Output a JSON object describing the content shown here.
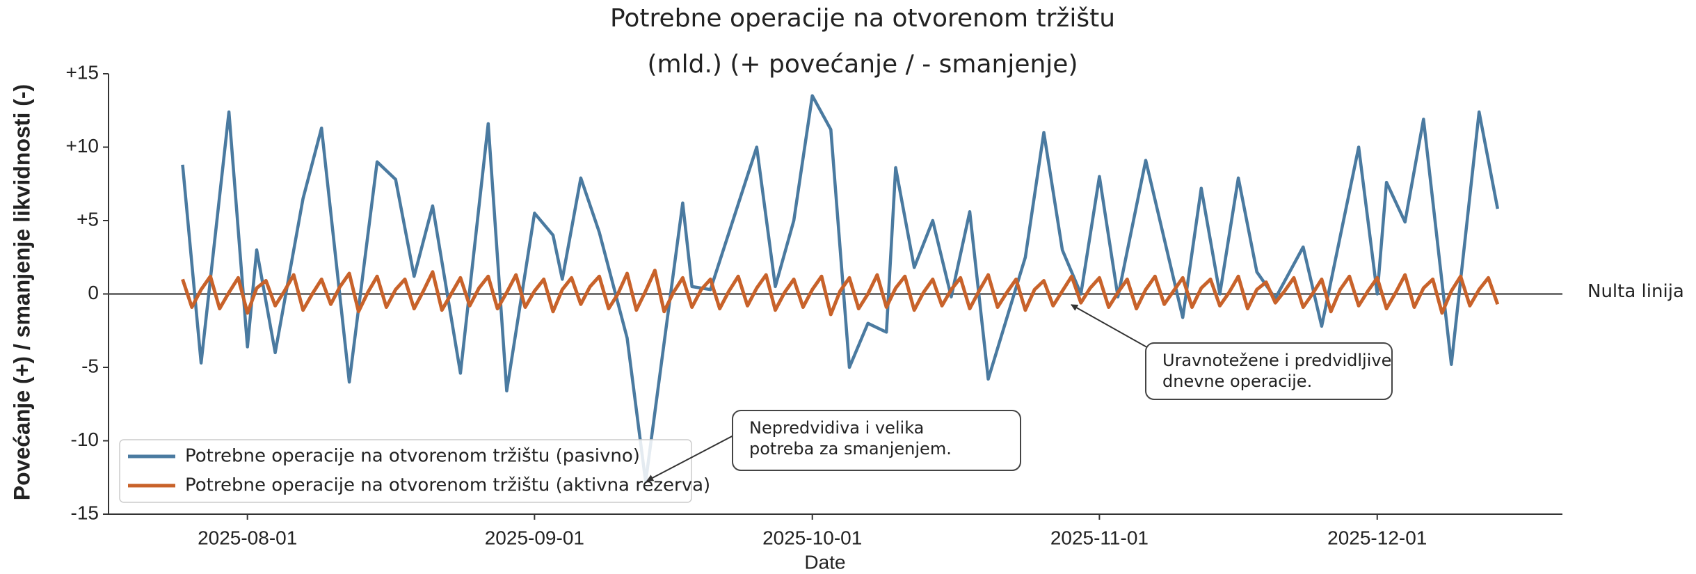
{
  "chart_data": {
    "type": "line",
    "title": "Potrebne operacije na otvorenom tržištu",
    "subtitle": "(mld.) (+ povećanje / - smanjenje)",
    "ylabel": "Povećanje (+) / smanjenje likvidnosti  (-)",
    "xlabel": "Date",
    "xlim": [
      "2025-07-17",
      "2025-12-21"
    ],
    "xticks": [
      "2025-08-01",
      "2025-09-01",
      "2025-10-01",
      "2025-11-01",
      "2025-12-01"
    ],
    "ylim": [
      -15,
      15
    ],
    "yticks": [
      {
        "value": 15,
        "label": "+15"
      },
      {
        "value": 10,
        "label": "+10"
      },
      {
        "value": 5,
        "label": "+5"
      },
      0,
      -5,
      -10,
      -15
    ],
    "reference_line": {
      "value": 0,
      "label": "Nulta linija"
    },
    "legend": "lower left",
    "series": [
      {
        "name": "Potrebne operacije na otvorenom tržištu (pasivno)",
        "color": "#4a7aa0",
        "x": [
          "2025-07-25",
          "2025-07-27",
          "2025-07-30",
          "2025-08-01",
          "2025-08-02",
          "2025-08-04",
          "2025-08-07",
          "2025-08-09",
          "2025-08-12",
          "2025-08-15",
          "2025-08-17",
          "2025-08-19",
          "2025-08-21",
          "2025-08-24",
          "2025-08-27",
          "2025-08-29",
          "2025-09-01",
          "2025-09-03",
          "2025-09-04",
          "2025-09-06",
          "2025-09-08",
          "2025-09-11",
          "2025-09-13",
          "2025-09-17",
          "2025-09-18",
          "2025-09-20",
          "2025-09-25",
          "2025-09-27",
          "2025-09-29",
          "2025-10-01",
          "2025-10-03",
          "2025-10-05",
          "2025-10-07",
          "2025-10-09",
          "2025-10-10",
          "2025-10-12",
          "2025-10-14",
          "2025-10-16",
          "2025-10-18",
          "2025-10-20",
          "2025-10-24",
          "2025-10-26",
          "2025-10-28",
          "2025-10-30",
          "2025-11-01",
          "2025-11-03",
          "2025-11-06",
          "2025-11-10",
          "2025-11-12",
          "2025-11-14",
          "2025-11-16",
          "2025-11-18",
          "2025-11-20",
          "2025-11-23",
          "2025-11-25",
          "2025-11-29",
          "2025-12-01",
          "2025-12-02",
          "2025-12-04",
          "2025-12-06",
          "2025-12-09",
          "2025-12-12",
          "2025-12-14"
        ],
        "values": [
          8.8,
          -4.7,
          12.4,
          -3.6,
          3.0,
          -4.0,
          6.5,
          11.3,
          -6.0,
          9.0,
          7.8,
          1.2,
          6.0,
          -5.4,
          11.6,
          -6.6,
          5.5,
          4.0,
          1.0,
          7.9,
          4.2,
          -3.0,
          -12.8,
          6.2,
          0.5,
          0.3,
          10.0,
          0.5,
          5.0,
          13.5,
          11.2,
          -5.0,
          -2.0,
          -2.6,
          8.6,
          1.8,
          5.0,
          -0.2,
          5.6,
          -5.8,
          2.5,
          11.0,
          3.0,
          0.0,
          8.0,
          -0.2,
          9.1,
          -1.6,
          7.2,
          0.0,
          7.9,
          1.5,
          -0.3,
          3.2,
          -2.2,
          10.0,
          0.0,
          7.6,
          4.9,
          11.9,
          -4.8,
          12.4,
          5.8
        ]
      },
      {
        "name": "Potrebne operacije na otvorenom tržištu (aktivna rezerva)",
        "color": "#c8622a",
        "x": [
          "2025-07-25",
          "2025-07-26",
          "2025-07-27",
          "2025-07-28",
          "2025-07-29",
          "2025-07-30",
          "2025-07-31",
          "2025-08-01",
          "2025-08-02",
          "2025-08-03",
          "2025-08-04",
          "2025-08-05",
          "2025-08-06",
          "2025-08-07",
          "2025-08-08",
          "2025-08-09",
          "2025-08-10",
          "2025-08-11",
          "2025-08-12",
          "2025-08-13",
          "2025-08-14",
          "2025-08-15",
          "2025-08-16",
          "2025-08-17",
          "2025-08-18",
          "2025-08-19",
          "2025-08-20",
          "2025-08-21",
          "2025-08-22",
          "2025-08-23",
          "2025-08-24",
          "2025-08-25",
          "2025-08-26",
          "2025-08-27",
          "2025-08-28",
          "2025-08-29",
          "2025-08-30",
          "2025-08-31",
          "2025-09-01",
          "2025-09-02",
          "2025-09-03",
          "2025-09-04",
          "2025-09-05",
          "2025-09-06",
          "2025-09-07",
          "2025-09-08",
          "2025-09-09",
          "2025-09-10",
          "2025-09-11",
          "2025-09-12",
          "2025-09-13",
          "2025-09-14",
          "2025-09-15",
          "2025-09-16",
          "2025-09-17",
          "2025-09-18",
          "2025-09-19",
          "2025-09-20",
          "2025-09-21",
          "2025-09-22",
          "2025-09-23",
          "2025-09-24",
          "2025-09-25",
          "2025-09-26",
          "2025-09-27",
          "2025-09-28",
          "2025-09-29",
          "2025-09-30",
          "2025-10-01",
          "2025-10-02",
          "2025-10-03",
          "2025-10-04",
          "2025-10-05",
          "2025-10-06",
          "2025-10-07",
          "2025-10-08",
          "2025-10-09",
          "2025-10-10",
          "2025-10-11",
          "2025-10-12",
          "2025-10-13",
          "2025-10-14",
          "2025-10-15",
          "2025-10-16",
          "2025-10-17",
          "2025-10-18",
          "2025-10-19",
          "2025-10-20",
          "2025-10-21",
          "2025-10-22",
          "2025-10-23",
          "2025-10-24",
          "2025-10-25",
          "2025-10-26",
          "2025-10-27",
          "2025-10-28",
          "2025-10-29",
          "2025-10-30",
          "2025-10-31",
          "2025-11-01",
          "2025-11-02",
          "2025-11-03",
          "2025-11-04",
          "2025-11-05",
          "2025-11-06",
          "2025-11-07",
          "2025-11-08",
          "2025-11-09",
          "2025-11-10",
          "2025-11-11",
          "2025-11-12",
          "2025-11-13",
          "2025-11-14",
          "2025-11-15",
          "2025-11-16",
          "2025-11-17",
          "2025-11-18",
          "2025-11-19",
          "2025-11-20",
          "2025-11-21",
          "2025-11-22",
          "2025-11-23",
          "2025-11-24",
          "2025-11-25",
          "2025-11-26",
          "2025-11-27",
          "2025-11-28",
          "2025-11-29",
          "2025-11-30",
          "2025-12-01",
          "2025-12-02",
          "2025-12-03",
          "2025-12-04",
          "2025-12-05",
          "2025-12-06",
          "2025-12-07",
          "2025-12-08",
          "2025-12-09",
          "2025-12-10",
          "2025-12-11",
          "2025-12-12",
          "2025-12-13",
          "2025-12-14"
        ],
        "values": [
          1.0,
          -0.9,
          0.3,
          1.2,
          -1.0,
          0.1,
          1.1,
          -1.3,
          0.4,
          0.9,
          -0.8,
          0.2,
          1.3,
          -1.1,
          0.0,
          1.0,
          -0.7,
          0.5,
          1.4,
          -1.2,
          0.1,
          1.2,
          -0.9,
          0.3,
          1.0,
          -1.0,
          0.2,
          1.5,
          -1.1,
          0.0,
          1.1,
          -0.8,
          0.4,
          1.2,
          -1.0,
          0.1,
          1.3,
          -0.9,
          0.2,
          1.0,
          -1.2,
          0.3,
          1.1,
          -0.7,
          0.5,
          1.2,
          -1.0,
          0.0,
          1.4,
          -1.1,
          0.2,
          1.6,
          -1.2,
          0.1,
          1.1,
          -0.9,
          0.3,
          1.0,
          -1.0,
          0.2,
          1.2,
          -0.8,
          0.4,
          1.3,
          -1.1,
          0.1,
          1.0,
          -0.9,
          0.3,
          1.2,
          -1.4,
          0.2,
          1.1,
          -1.0,
          0.0,
          1.3,
          -0.9,
          0.4,
          1.2,
          -1.1,
          0.1,
          1.0,
          -0.8,
          0.3,
          1.1,
          -1.0,
          0.2,
          1.3,
          -0.9,
          0.1,
          1.0,
          -1.1,
          0.3,
          0.9,
          -0.8,
          0.2,
          1.2,
          -0.6,
          0.4,
          1.1,
          -0.9,
          0.1,
          1.0,
          -1.0,
          0.3,
          1.2,
          -0.7,
          0.2,
          1.1,
          -0.9,
          0.4,
          1.0,
          -0.8,
          0.1,
          1.2,
          -1.0,
          0.3,
          0.8,
          -0.6,
          0.2,
          1.1,
          -0.9,
          0.0,
          1.0,
          -1.2,
          0.3,
          1.2,
          -0.8,
          0.2,
          1.1,
          -1.0,
          0.1,
          1.3,
          -0.9,
          0.4,
          1.0,
          -1.3,
          0.2,
          1.2,
          -0.8,
          0.3,
          1.1,
          -0.7
        ]
      }
    ],
    "annotations": [
      {
        "lines": [
          "Uravnotežene i predvidljive",
          "dnevne operacije."
        ]
      },
      {
        "lines": [
          "Nepredvidiva i velika",
          "potreba za smanjenjem."
        ]
      }
    ]
  }
}
